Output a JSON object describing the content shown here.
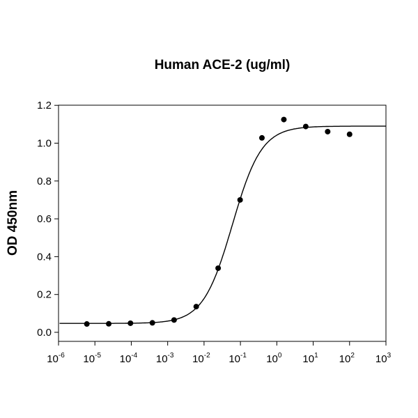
{
  "chart_data": {
    "type": "scatter",
    "title": "Human ACE-2 (ug/ml)",
    "xlabel": "",
    "ylabel": "OD 450nm",
    "xscale": "log",
    "xlim": [
      1e-06,
      1000
    ],
    "ylim": [
      -0.03,
      1.2
    ],
    "x_ticks": [
      {
        "base": "10",
        "exp": "-6",
        "value": 1e-06
      },
      {
        "base": "10",
        "exp": "-5",
        "value": 1e-05
      },
      {
        "base": "10",
        "exp": "-4",
        "value": 0.0001
      },
      {
        "base": "10",
        "exp": "-3",
        "value": 0.001
      },
      {
        "base": "10",
        "exp": "-2",
        "value": 0.01
      },
      {
        "base": "10",
        "exp": "-1",
        "value": 0.1
      },
      {
        "base": "10",
        "exp": "0",
        "value": 1
      },
      {
        "base": "10",
        "exp": "1",
        "value": 10
      },
      {
        "base": "10",
        "exp": "2",
        "value": 100
      },
      {
        "base": "10",
        "exp": "3",
        "value": 1000
      }
    ],
    "y_ticks": [
      "0.0",
      "0.2",
      "0.4",
      "0.6",
      "0.8",
      "1.0",
      "1.2"
    ],
    "grid": false,
    "series": [
      {
        "name": "data",
        "x": [
          6e-06,
          2.4e-05,
          9.5e-05,
          0.00038,
          0.0015,
          0.0061,
          0.0244,
          0.098,
          0.39,
          1.5625,
          6.25,
          25,
          100
        ],
        "y": [
          0.044,
          0.045,
          0.048,
          0.05,
          0.065,
          0.136,
          0.339,
          0.7,
          1.028,
          1.125,
          1.088,
          1.061,
          1.047
        ]
      }
    ],
    "fit": {
      "model": "4PL",
      "bottom": 0.047,
      "top": 1.09,
      "ec50": 0.06,
      "hill": 1.08
    }
  }
}
